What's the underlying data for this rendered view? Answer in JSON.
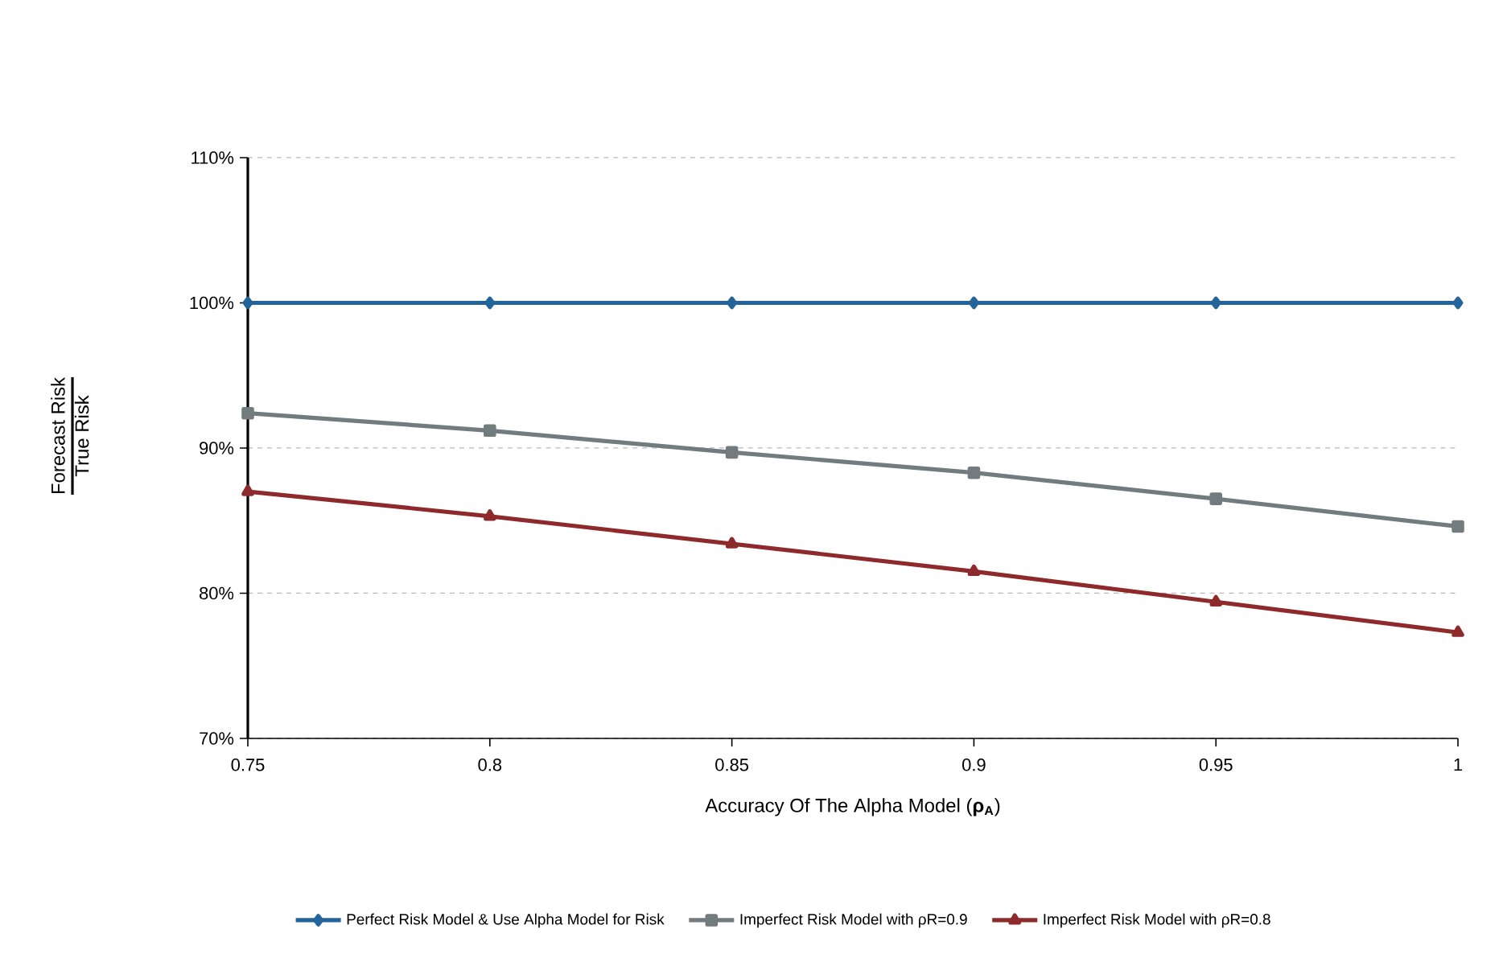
{
  "chart_data": {
    "type": "line",
    "xlabel": "Accuracy Of The Alpha Model (**ρ$_{A}$**)",
    "annotations": [
      "Forecast Risk",
      "True Risk"
    ],
    "x": [
      0.75,
      0.8,
      0.85,
      0.9,
      0.95,
      1
    ],
    "series": [
      {
        "name": "Perfect Risk Model & Use Alpha Model for Risk",
        "color": "#23649b",
        "marker": "diamond",
        "values": [
          100,
          100,
          100,
          100,
          100,
          100
        ]
      },
      {
        "name": "Imperfect Risk Model with ρR=0.9",
        "color": "#727b7d",
        "marker": "square",
        "values": [
          92.4,
          91.2,
          89.7,
          88.3,
          86.5,
          84.6
        ]
      },
      {
        "name": "Imperfect Risk Model with ρR=0.8",
        "color": "#8e2a2c",
        "marker": "triangle",
        "values": [
          87.0,
          85.3,
          83.4,
          81.5,
          79.4,
          77.3
        ]
      }
    ],
    "xlim": [
      0.75,
      1
    ],
    "xticks": [
      0.75,
      0.8,
      0.85,
      0.9,
      0.95,
      1
    ],
    "ylim": [
      70,
      110
    ],
    "yticks": [
      {
        "value": 70,
        "label": "70%"
      },
      {
        "value": 80,
        "label": "80%"
      },
      {
        "value": 90,
        "label": "90%"
      },
      {
        "value": 100,
        "label": "100%"
      },
      {
        "value": 110,
        "label": "110%"
      }
    ],
    "grid": "y",
    "legend": "bottom"
  }
}
